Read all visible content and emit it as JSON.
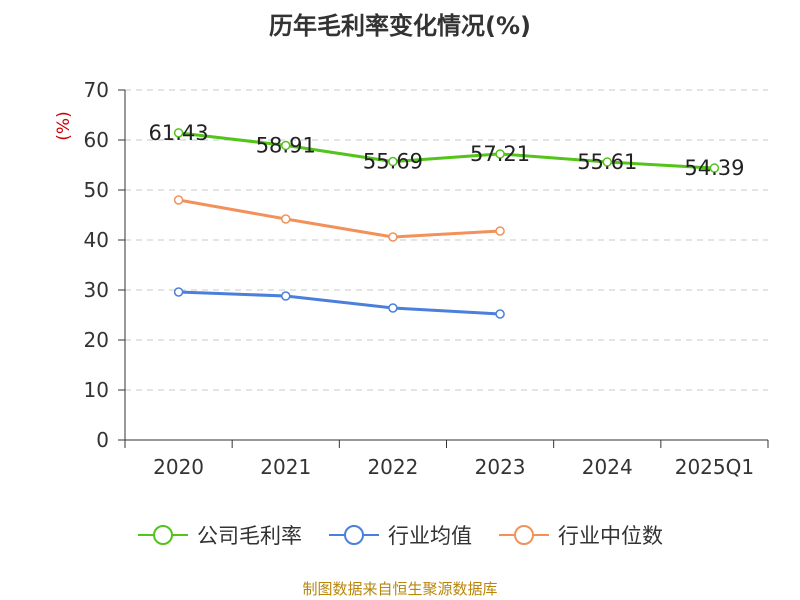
{
  "chart_data": {
    "type": "line",
    "title": "历年毛利率变化情况(%)",
    "ylabel": "(%)",
    "xlabel": "",
    "categories": [
      "2020",
      "2021",
      "2022",
      "2023",
      "2024",
      "2025Q1"
    ],
    "ylim": [
      0,
      70
    ],
    "yticks": [
      0,
      10,
      20,
      30,
      40,
      50,
      60,
      70
    ],
    "grid": true,
    "legend_position": "bottom",
    "series": [
      {
        "name": "公司毛利率",
        "color": "#52c41a",
        "values": [
          61.43,
          58.91,
          55.69,
          57.21,
          55.61,
          54.39
        ],
        "labels": [
          "61.43",
          "58.91",
          "55.69",
          "57.21",
          "55.61",
          "54.39"
        ]
      },
      {
        "name": "行业均值",
        "color": "#4a7fdb",
        "values": [
          29.6,
          28.8,
          26.4,
          25.2,
          null,
          null
        ]
      },
      {
        "name": "行业中位数",
        "color": "#f2925a",
        "values": [
          48.0,
          44.2,
          40.6,
          41.8,
          null,
          null
        ]
      }
    ]
  },
  "source": "制图数据来自恒生聚源数据库"
}
